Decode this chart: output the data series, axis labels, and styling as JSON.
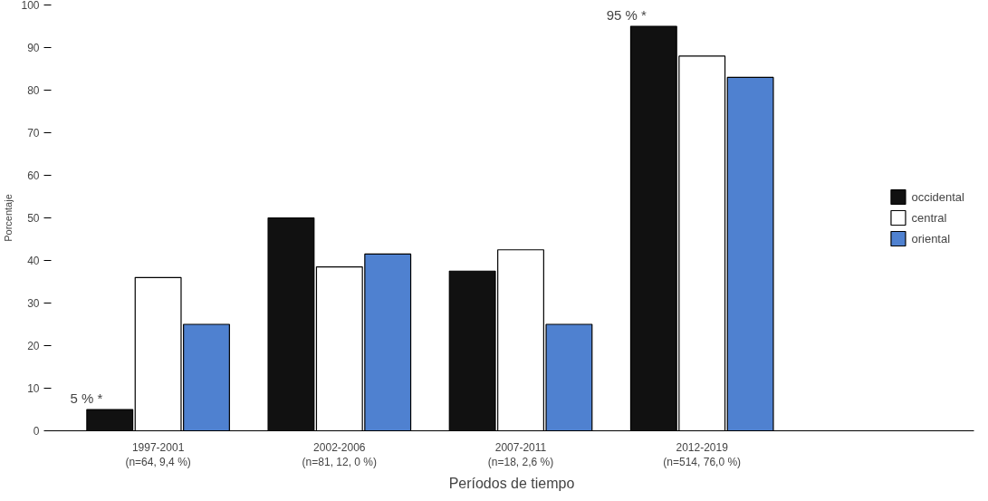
{
  "chart_data": {
    "type": "bar",
    "xlabel": "Períodos de tiempo",
    "ylabel": "Porcentaje",
    "categories": [
      "1997-2001\n(n=64, 9,4 %)",
      "2002-2006\n(n=81, 12, 0 %)",
      "2007-2011\n(n=18, 2,6 %)",
      "2012-2019\n(n=514, 76,0 %)"
    ],
    "series": [
      {
        "name": "occidental",
        "color": "#111111",
        "values": [
          5,
          50,
          37.5,
          95
        ]
      },
      {
        "name": "central",
        "color": "#ffffff",
        "values": [
          36,
          38.5,
          42.5,
          88
        ]
      },
      {
        "name": "oriental",
        "color": "#4f81d0",
        "values": [
          25,
          41.5,
          25,
          83
        ]
      }
    ],
    "ylim": [
      0,
      100
    ],
    "yticks": [
      0,
      10,
      20,
      30,
      40,
      50,
      60,
      70,
      80,
      90,
      100
    ],
    "annotations": [
      "5 % *",
      "95 % *"
    ],
    "grid": false,
    "legend": "right"
  }
}
